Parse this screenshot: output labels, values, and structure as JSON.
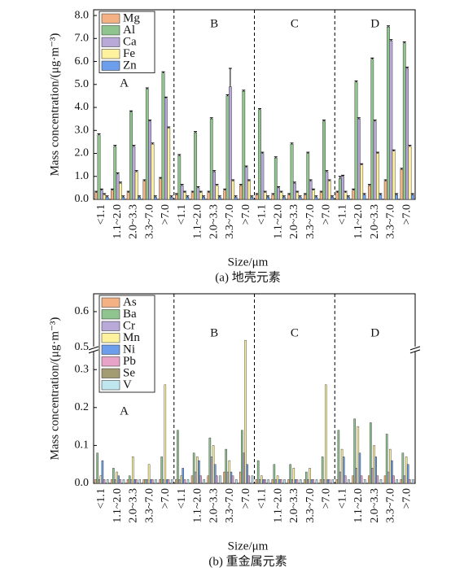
{
  "chart_data": [
    {
      "type": "bar",
      "ylabel": "Mass concentration/(μg·m⁻³)",
      "xlabel": "Size/μm",
      "caption": "(a) 地壳元素",
      "groups": [
        "A",
        "B",
        "C",
        "D"
      ],
      "categories": [
        "<1.1",
        "1.1~2.0",
        "2.0~3.3",
        "3.3~7.0",
        ">7.0"
      ],
      "ylim": [
        0,
        8.25
      ],
      "yticks": [
        {
          "value": 0,
          "label": "0.0"
        },
        {
          "value": 1,
          "label": "1.0"
        },
        {
          "value": 2,
          "label": "2.0"
        },
        {
          "value": 3,
          "label": "3.0"
        },
        {
          "value": 4,
          "label": "4.0"
        },
        {
          "value": 5,
          "label": "5.0"
        },
        {
          "value": 6,
          "label": "6.0"
        },
        {
          "value": 7,
          "label": "7.0"
        },
        {
          "value": 8,
          "label": "8.0"
        }
      ],
      "series": [
        {
          "name": "Mg",
          "color": "#f4b183",
          "values": [
            [
              0.3,
              0.4,
              0.3,
              0.8,
              0.9
            ],
            [
              0.2,
              0.3,
              0.3,
              0.4,
              0.6
            ],
            [
              0.2,
              0.2,
              0.2,
              0.2,
              0.3
            ],
            [
              0.3,
              0.4,
              0.6,
              0.8,
              1.3
            ]
          ],
          "errors": [
            [
              0.05,
              0.05,
              0.05,
              0.05,
              0.05
            ],
            [
              0.05,
              0.05,
              0.05,
              0.05,
              0.05
            ],
            [
              0.05,
              0.05,
              0.05,
              0.05,
              0.05
            ],
            [
              0.05,
              0.05,
              0.05,
              0.05,
              0.05
            ]
          ]
        },
        {
          "name": "Al",
          "color": "#8fc48f",
          "values": [
            [
              2.8,
              2.3,
              3.8,
              4.8,
              5.5
            ],
            [
              1.9,
              2.9,
              3.5,
              4.5,
              4.7
            ],
            [
              3.9,
              1.8,
              2.4,
              2.0,
              3.4
            ],
            [
              0.9,
              5.1,
              6.1,
              7.5,
              6.8
            ]
          ],
          "errors": [
            [
              0.05,
              0.05,
              0.05,
              0.05,
              0.05
            ],
            [
              0.05,
              0.05,
              0.05,
              0.05,
              0.05
            ],
            [
              0.05,
              0.05,
              0.05,
              0.05,
              0.05
            ],
            [
              0.1,
              0.05,
              0.05,
              0.05,
              0.05
            ]
          ]
        },
        {
          "name": "Ca",
          "color": "#b8a9d9",
          "values": [
            [
              0.4,
              1.1,
              2.3,
              3.4,
              4.4
            ],
            [
              0.6,
              0.5,
              1.2,
              4.9,
              1.4
            ],
            [
              2.0,
              0.5,
              0.7,
              0.8,
              1.2
            ],
            [
              1.0,
              3.5,
              3.4,
              6.9,
              5.7
            ]
          ],
          "errors": [
            [
              0.05,
              0.05,
              0.05,
              0.05,
              0.05
            ],
            [
              0.05,
              0.05,
              0.05,
              0.8,
              0.05
            ],
            [
              0.05,
              0.05,
              0.05,
              0.05,
              0.05
            ],
            [
              0.05,
              0.05,
              0.05,
              0.05,
              0.05
            ]
          ]
        },
        {
          "name": "Fe",
          "color": "#fff29e",
          "values": [
            [
              0.2,
              0.7,
              1.2,
              2.4,
              3.1
            ],
            [
              0.3,
              0.3,
              0.6,
              0.8,
              0.8
            ],
            [
              0.3,
              0.3,
              0.3,
              0.4,
              0.8
            ],
            [
              0.3,
              1.5,
              2.0,
              2.1,
              2.3
            ]
          ],
          "errors": [
            [
              0.05,
              0.05,
              0.05,
              0.05,
              0.05
            ],
            [
              0.05,
              0.05,
              0.05,
              0.05,
              0.05
            ],
            [
              0.05,
              0.05,
              0.05,
              0.05,
              0.05
            ],
            [
              0.05,
              0.05,
              0.05,
              0.05,
              0.05
            ]
          ]
        },
        {
          "name": "Zn",
          "color": "#6d9eeb",
          "values": [
            [
              0.1,
              0.1,
              0.1,
              0.1,
              0.1
            ],
            [
              0.1,
              0.1,
              0.1,
              0.1,
              0.1
            ],
            [
              0.1,
              0.1,
              0.1,
              0.1,
              0.1
            ],
            [
              0.1,
              0.2,
              0.2,
              0.2,
              0.2
            ]
          ],
          "errors": [
            [
              0.05,
              0.05,
              0.05,
              0.05,
              0.05
            ],
            [
              0.05,
              0.05,
              0.05,
              0.05,
              0.05
            ],
            [
              0.05,
              0.05,
              0.05,
              0.05,
              0.05
            ],
            [
              0.05,
              0.05,
              0.05,
              0.05,
              0.05
            ]
          ]
        }
      ]
    },
    {
      "type": "bar",
      "ylabel": "Mass concentration/(μg·m⁻³)",
      "xlabel": "Size/μm",
      "caption": "(b) 重金属元素",
      "groups": [
        "A",
        "B",
        "C",
        "D"
      ],
      "categories": [
        "<1.1",
        "1.1~2.0",
        "2.0~3.3",
        "3.3~7.0",
        ">7.0"
      ],
      "ylim": [
        0,
        0.65
      ],
      "ybreak": [
        0.35,
        0.5
      ],
      "yticks": [
        {
          "value": 0,
          "label": "0.0"
        },
        0.1,
        0.2,
        0.3,
        0.5,
        0.6
      ],
      "series": [
        {
          "name": "As",
          "color": "#f4b183",
          "values": [
            [
              0.01,
              0.01,
              0.01,
              0.01,
              0.01
            ],
            [
              0.01,
              0.02,
              0.02,
              0.03,
              0.03
            ],
            [
              0.01,
              0.01,
              0.01,
              0.01,
              0.01
            ],
            [
              0.01,
              0.02,
              0.02,
              0.02,
              0.01
            ]
          ]
        },
        {
          "name": "Ba",
          "color": "#8fc48f",
          "values": [
            [
              0.08,
              0.04,
              0.02,
              0.01,
              0.07
            ],
            [
              0.14,
              0.08,
              0.12,
              0.09,
              0.14
            ],
            [
              0.06,
              0.05,
              0.05,
              0.03,
              0.07
            ],
            [
              0.14,
              0.17,
              0.16,
              0.13,
              0.08
            ]
          ]
        },
        {
          "name": "Cr",
          "color": "#b8a9d9",
          "values": [
            [
              0.01,
              0.01,
              0.01,
              0.01,
              0.01
            ],
            [
              0.01,
              0.03,
              0.07,
              0.03,
              0.08
            ],
            [
              0.01,
              0.01,
              0.01,
              0.01,
              0.01
            ],
            [
              0.03,
              0.04,
              0.04,
              0.03,
              0.02
            ]
          ]
        },
        {
          "name": "Mn",
          "color": "#fff29e",
          "values": [
            [
              0.02,
              0.03,
              0.07,
              0.05,
              0.26
            ],
            [
              0.02,
              0.07,
              0.1,
              0.06,
              0.52
            ],
            [
              0.02,
              0.02,
              0.04,
              0.04,
              0.26
            ],
            [
              0.09,
              0.15,
              0.1,
              0.09,
              0.07
            ]
          ]
        },
        {
          "name": "Ni",
          "color": "#6d9eeb",
          "values": [
            [
              0.06,
              0.02,
              0.01,
              0.01,
              0.01
            ],
            [
              0.04,
              0.06,
              0.05,
              0.03,
              0.05
            ],
            [
              0.01,
              0.01,
              0.01,
              0.01,
              0.01
            ],
            [
              0.07,
              0.08,
              0.07,
              0.06,
              0.05
            ]
          ]
        },
        {
          "name": "Pb",
          "color": "#e8a3c8",
          "values": [
            [
              0.01,
              0.01,
              0.01,
              0.01,
              0.01
            ],
            [
              0.01,
              0.02,
              0.02,
              0.02,
              0.02
            ],
            [
              0.01,
              0.01,
              0.01,
              0.01,
              0.01
            ],
            [
              0.02,
              0.02,
              0.02,
              0.02,
              0.01
            ]
          ]
        },
        {
          "name": "Se",
          "color": "#a39c72",
          "values": [
            [
              0,
              0,
              0,
              0,
              0
            ],
            [
              0,
              0,
              0,
              0,
              0
            ],
            [
              0,
              0,
              0,
              0,
              0
            ],
            [
              0,
              0,
              0,
              0,
              0
            ]
          ]
        },
        {
          "name": "V",
          "color": "#bfe6ef",
          "values": [
            [
              0.01,
              0.01,
              0.01,
              0.01,
              0.01
            ],
            [
              0.01,
              0.01,
              0.02,
              0.01,
              0.02
            ],
            [
              0.01,
              0.01,
              0.01,
              0.01,
              0.01
            ],
            [
              0.01,
              0.01,
              0.01,
              0.01,
              0.01
            ]
          ]
        }
      ]
    }
  ]
}
